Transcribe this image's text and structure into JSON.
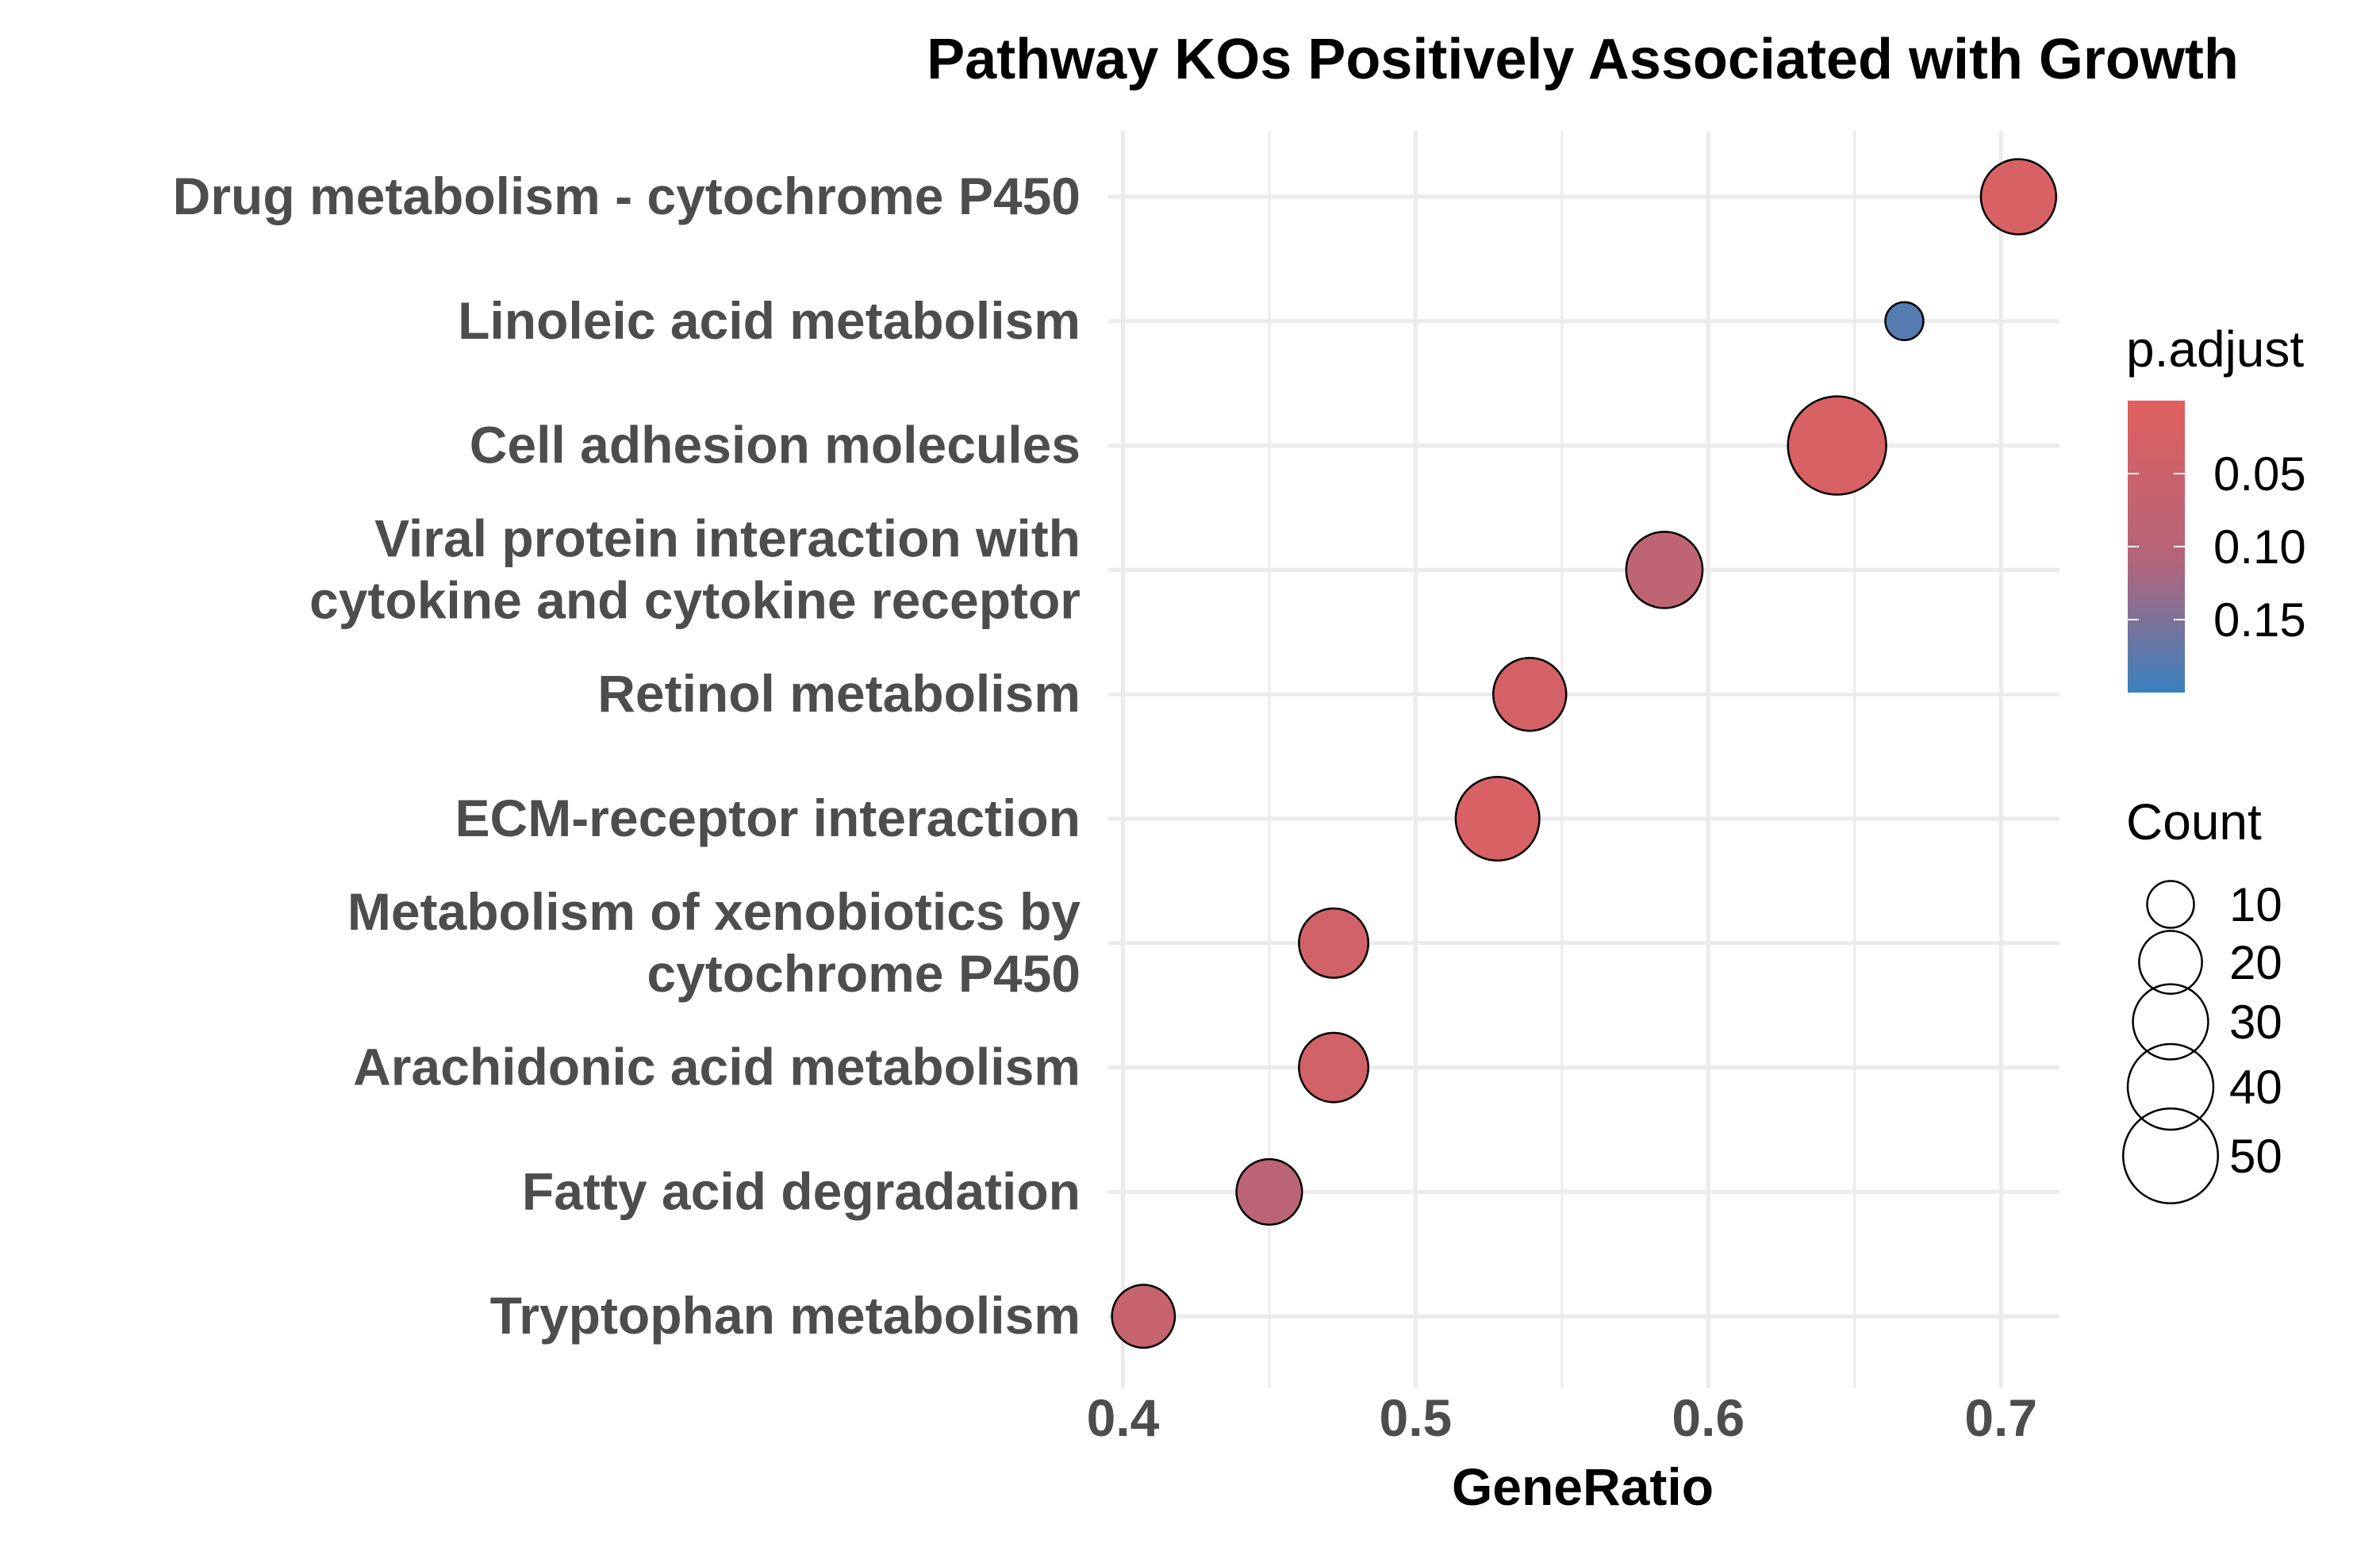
{
  "chart_data": {
    "type": "scatter",
    "title": "Pathway KOs Positively Associated with Growth",
    "xlabel": "GeneRatio",
    "ylabel": "",
    "xlim": [
      0.395,
      0.72
    ],
    "xticks": [
      "0.4",
      "0.5",
      "0.6",
      "0.7"
    ],
    "xtick_values": [
      0.4,
      0.5,
      0.6,
      0.7
    ],
    "grid": true,
    "categories": [
      [
        "Drug metabolism - cytochrome P450"
      ],
      [
        "Linoleic acid metabolism"
      ],
      [
        "Cell adhesion molecules"
      ],
      [
        "Viral protein interaction with",
        "cytokine and cytokine receptor"
      ],
      [
        "Retinol metabolism"
      ],
      [
        "ECM-receptor interaction"
      ],
      [
        "Metabolism of xenobiotics by",
        "cytochrome P450"
      ],
      [
        "Arachidonic acid metabolism"
      ],
      [
        "Fatty acid degradation"
      ],
      [
        "Tryptophan metabolism"
      ]
    ],
    "points": [
      {
        "x": 0.706,
        "count": 30,
        "p_adjust": 0.02
      },
      {
        "x": 0.667,
        "count": 6,
        "p_adjust": 0.18
      },
      {
        "x": 0.644,
        "count": 54,
        "p_adjust": 0.02
      },
      {
        "x": 0.585,
        "count": 31,
        "p_adjust": 0.08
      },
      {
        "x": 0.539,
        "count": 28,
        "p_adjust": 0.03
      },
      {
        "x": 0.528,
        "count": 38,
        "p_adjust": 0.02
      },
      {
        "x": 0.472,
        "count": 25,
        "p_adjust": 0.04
      },
      {
        "x": 0.472,
        "count": 25,
        "p_adjust": 0.04
      },
      {
        "x": 0.45,
        "count": 22,
        "p_adjust": 0.09
      },
      {
        "x": 0.407,
        "count": 20,
        "p_adjust": 0.06
      }
    ],
    "color_legend": {
      "title": "p.adjust",
      "ticks": [
        "0.05",
        "0.10",
        "0.15"
      ],
      "tick_values": [
        0.05,
        0.1,
        0.15
      ],
      "range": [
        0.0,
        0.2
      ],
      "low_color": "#e0605e",
      "high_color": "#3a81bf"
    },
    "size_legend": {
      "title": "Count",
      "labels": [
        "10",
        "20",
        "30",
        "40",
        "50"
      ],
      "values": [
        10,
        20,
        30,
        40,
        50
      ]
    },
    "colors": {
      "grid": "#ebebeb",
      "point_outline": "#000000"
    }
  }
}
